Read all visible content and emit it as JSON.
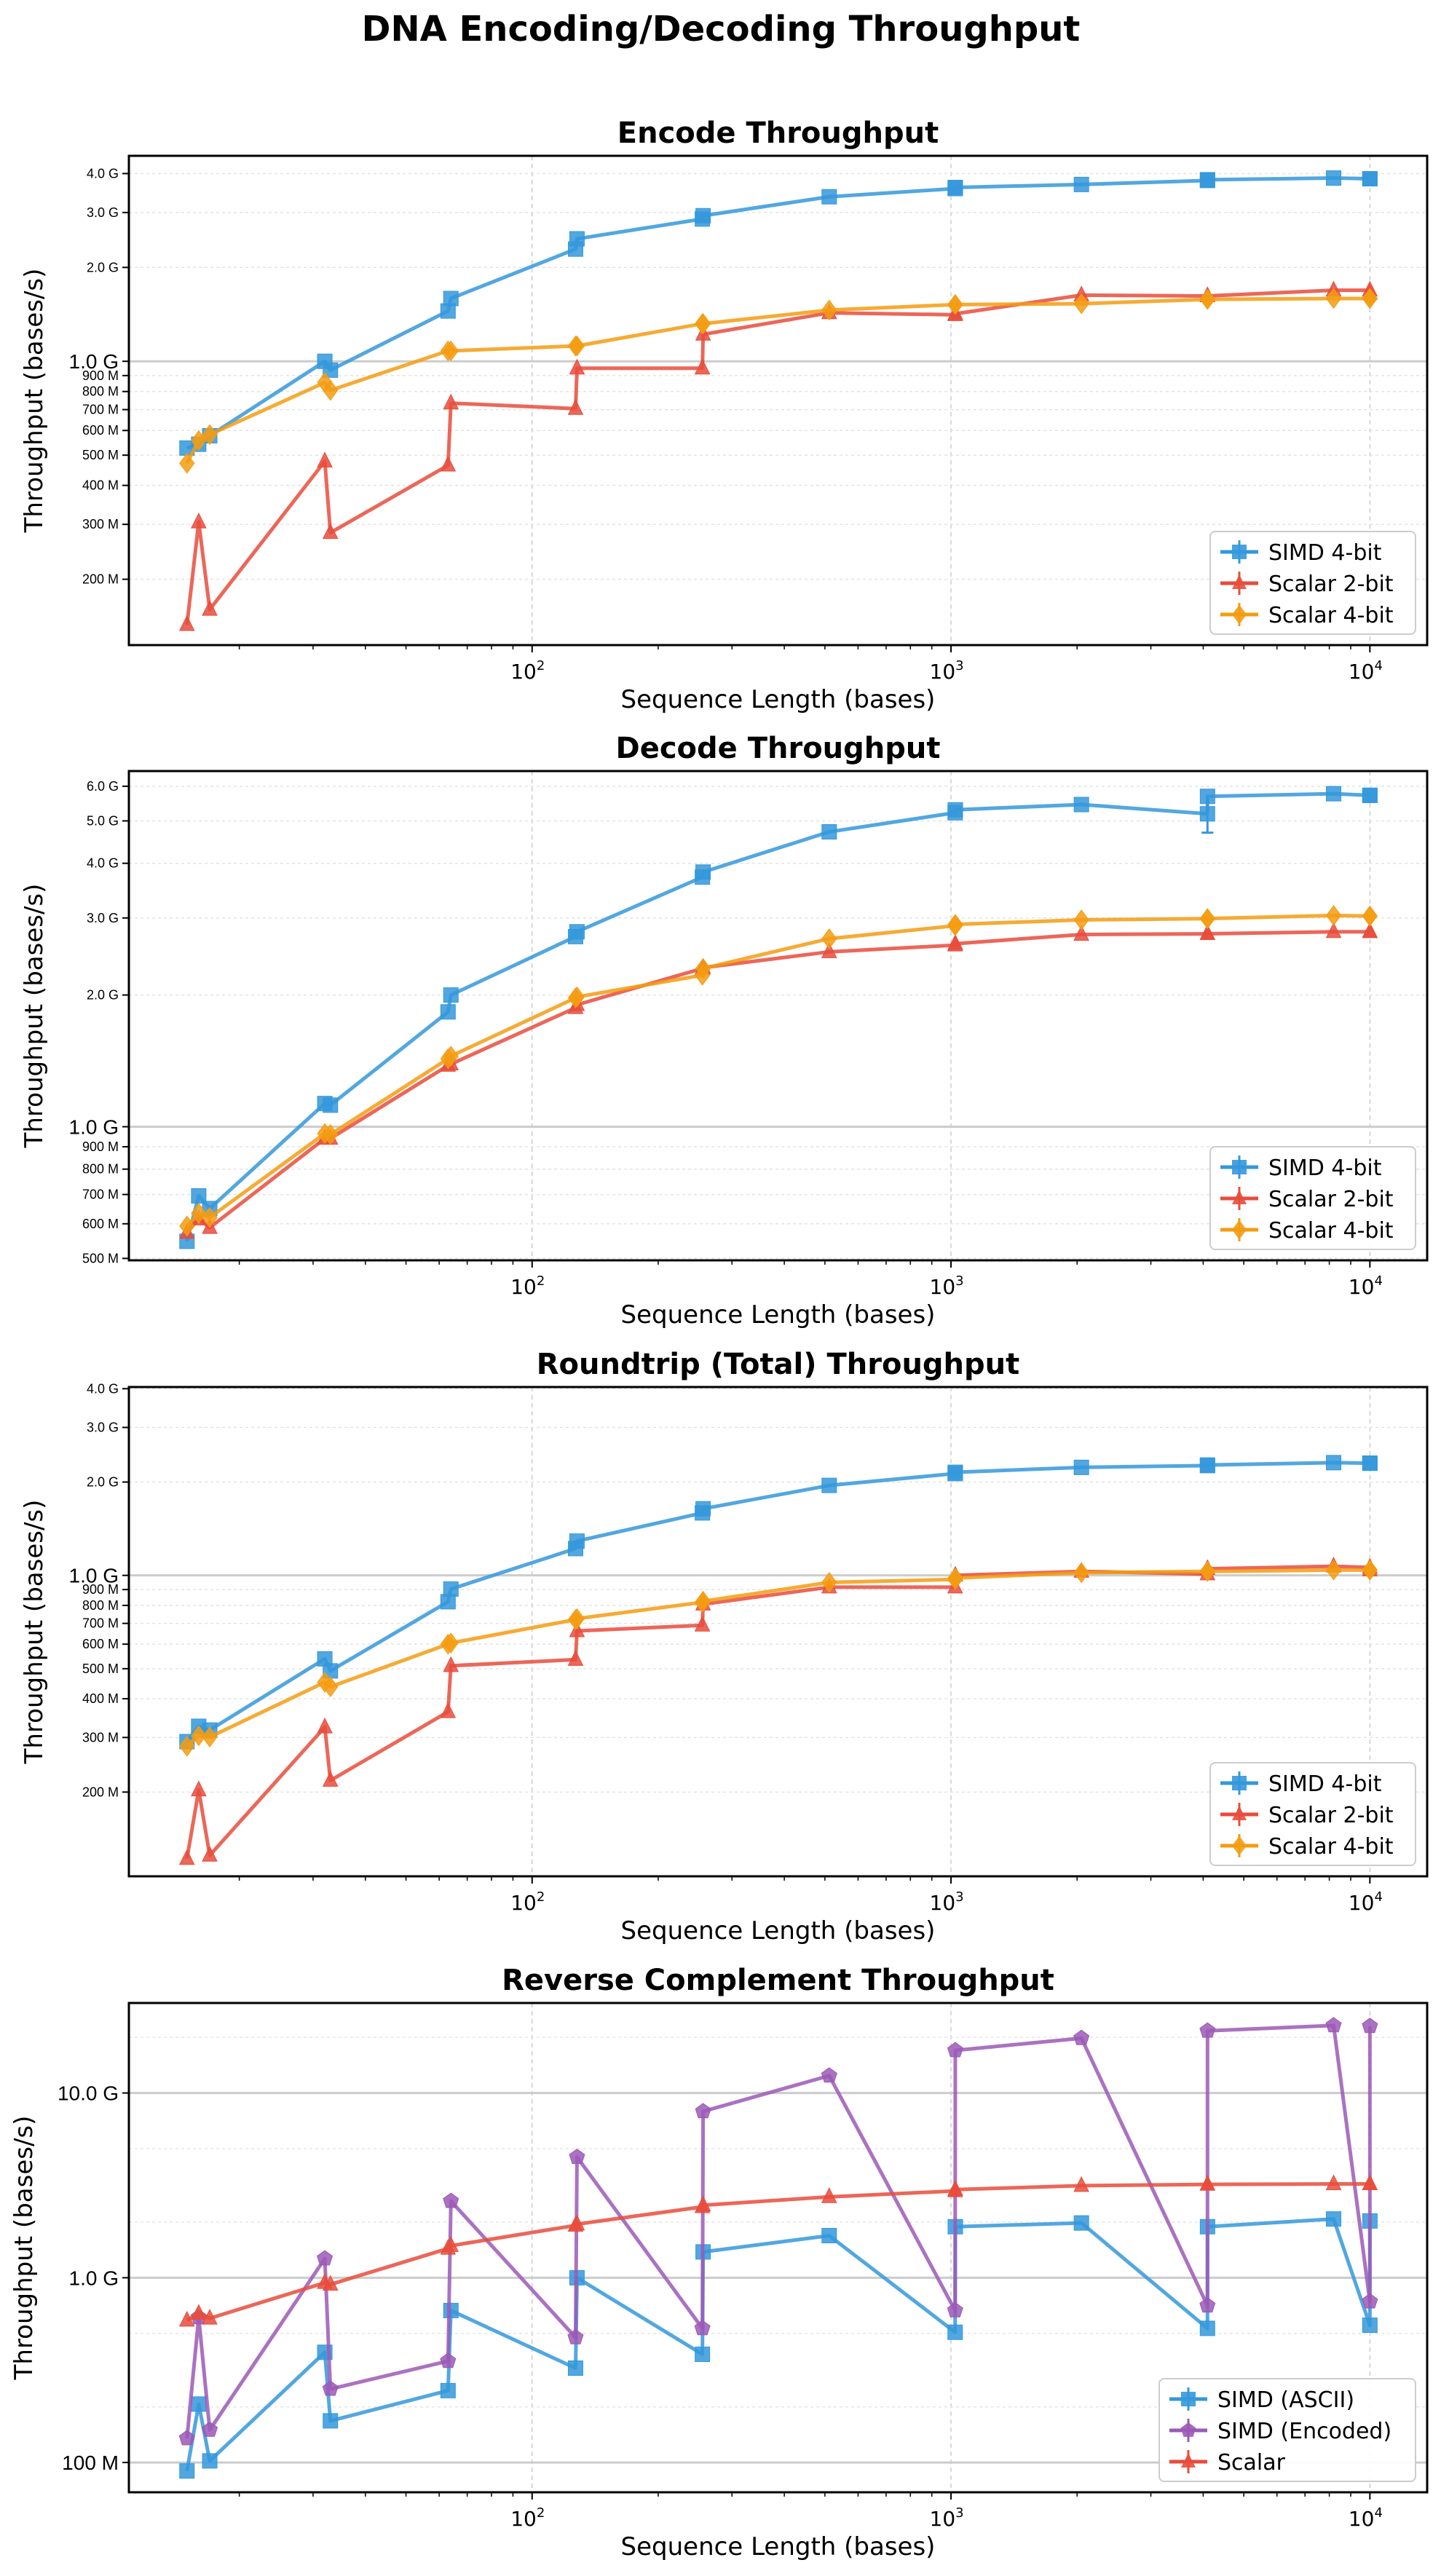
{
  "figure_title": "DNA Encoding/Decoding Throughput",
  "colors": {
    "blue": "#3498db",
    "red": "#e74c3c",
    "orange": "#f39c12",
    "purple": "#9b59b6"
  },
  "chart_data": [
    {
      "type": "line",
      "title": "Encode Throughput",
      "xlabel": "Sequence Length (bases)",
      "ylabel": "Throughput (bases/s)",
      "xscale": "log",
      "yscale": "log",
      "xlim": [
        10.9,
        13700
      ],
      "ylim": [
        123000000,
        4560000000
      ],
      "xticks": [
        {
          "value": 100,
          "base": "10",
          "exp": "2"
        },
        {
          "value": 1000,
          "base": "10",
          "exp": "3"
        },
        {
          "value": 10000,
          "base": "10",
          "exp": "4"
        }
      ],
      "yticks": [
        {
          "value": 200000000,
          "label": "200 M"
        },
        {
          "value": 300000000,
          "label": "300 M"
        },
        {
          "value": 400000000,
          "label": "400 M"
        },
        {
          "value": 500000000,
          "label": "500 M"
        },
        {
          "value": 600000000,
          "label": "600 M"
        },
        {
          "value": 700000000,
          "label": "700 M"
        },
        {
          "value": 800000000,
          "label": "800 M"
        },
        {
          "value": 900000000,
          "label": "900 M"
        },
        {
          "value": 1000000000,
          "label": "1.0 G"
        },
        {
          "value": 2000000000,
          "label": "2.0 G"
        },
        {
          "value": 3000000000,
          "label": "3.0 G"
        },
        {
          "value": 4000000000,
          "label": "4.0 G"
        }
      ],
      "grid": true,
      "legend": "lower-right",
      "x": [
        15,
        16,
        17,
        32,
        33,
        63,
        64,
        127,
        128,
        255,
        256,
        512,
        1023,
        1024,
        2048,
        4095,
        4096,
        8192,
        9999,
        10000
      ],
      "series": [
        {
          "name": "SIMD 4-bit",
          "color": "#3498db",
          "marker": "square",
          "values": [
            527000000.0,
            542000000.0,
            577000000.0,
            1000000000.0,
            937000000.0,
            1450000000.0,
            1590000000.0,
            2290000000.0,
            2470000000.0,
            2860000000.0,
            2930000000.0,
            3370000000.0,
            3580000000.0,
            3610000000.0,
            3690000000.0,
            3800000000.0,
            3820000000.0,
            3870000000.0,
            3850000000.0,
            3850000000.0
          ]
        },
        {
          "name": "Scalar 2-bit",
          "color": "#e74c3c",
          "marker": "triangle",
          "values": [
            143000000.0,
            305000000.0,
            160000000.0,
            478000000.0,
            282000000.0,
            464000000.0,
            734000000.0,
            705000000.0,
            950000000.0,
            950000000.0,
            1220000000.0,
            1430000000.0,
            1410000000.0,
            1420000000.0,
            1630000000.0,
            1620000000.0,
            1620000000.0,
            1690000000.0,
            1690000000.0,
            1650000000.0
          ]
        },
        {
          "name": "Scalar 4-bit",
          "color": "#f39c12",
          "marker": "diamond",
          "values": [
            471000000.0,
            557000000.0,
            582000000.0,
            855000000.0,
            807000000.0,
            1080000000.0,
            1080000000.0,
            1120000000.0,
            1120000000.0,
            1320000000.0,
            1320000000.0,
            1460000000.0,
            1520000000.0,
            1520000000.0,
            1530000000.0,
            1580000000.0,
            1580000000.0,
            1590000000.0,
            1590000000.0,
            1590000000.0
          ]
        }
      ]
    },
    {
      "type": "line",
      "title": "Decode Throughput",
      "xlabel": "Sequence Length (bases)",
      "ylabel": "Throughput (bases/s)",
      "xscale": "log",
      "yscale": "log",
      "xlim": [
        10.9,
        13700
      ],
      "ylim": [
        495000000,
        6500000000
      ],
      "xticks": [
        {
          "value": 100,
          "base": "10",
          "exp": "2"
        },
        {
          "value": 1000,
          "base": "10",
          "exp": "3"
        },
        {
          "value": 10000,
          "base": "10",
          "exp": "4"
        }
      ],
      "yticks": [
        {
          "value": 500000000,
          "label": "500 M"
        },
        {
          "value": 600000000,
          "label": "600 M"
        },
        {
          "value": 700000000,
          "label": "700 M"
        },
        {
          "value": 800000000,
          "label": "800 M"
        },
        {
          "value": 900000000,
          "label": "900 M"
        },
        {
          "value": 1000000000,
          "label": "1.0 G"
        },
        {
          "value": 2000000000,
          "label": "2.0 G"
        },
        {
          "value": 3000000000,
          "label": "3.0 G"
        },
        {
          "value": 4000000000,
          "label": "4.0 G"
        },
        {
          "value": 5000000000,
          "label": "5.0 G"
        },
        {
          "value": 6000000000,
          "label": "6.0 G"
        }
      ],
      "grid": true,
      "legend": "lower-right",
      "x": [
        15,
        16,
        17,
        32,
        33,
        63,
        64,
        127,
        128,
        255,
        256,
        512,
        1023,
        1024,
        2048,
        4095,
        4096,
        8192,
        9999,
        10000
      ],
      "series": [
        {
          "name": "SIMD 4-bit",
          "color": "#3498db",
          "marker": "square",
          "values": [
            547000000.0,
            695000000.0,
            650000000.0,
            1130000000.0,
            1120000000.0,
            1830000000.0,
            2000000000.0,
            2720000000.0,
            2790000000.0,
            3720000000.0,
            3820000000.0,
            4720000000.0,
            5220000000.0,
            5300000000.0,
            5450000000.0,
            5190000000.0,
            5690000000.0,
            5770000000.0,
            5720000000.0,
            5720000000.0
          ],
          "error_bars": [
            {
              "x": 4095,
              "low": 4700000000.0,
              "high": 5700000000.0
            }
          ]
        },
        {
          "name": "Scalar 2-bit",
          "color": "#e74c3c",
          "marker": "triangle",
          "values": [
            573000000.0,
            615000000.0,
            588000000.0,
            940000000.0,
            940000000.0,
            1380000000.0,
            1390000000.0,
            1870000000.0,
            1900000000.0,
            2300000000.0,
            2310000000.0,
            2510000000.0,
            2600000000.0,
            2620000000.0,
            2750000000.0,
            2760000000.0,
            2760000000.0,
            2790000000.0,
            2790000000.0,
            2790000000.0
          ]
        },
        {
          "name": "Scalar 4-bit",
          "color": "#f39c12",
          "marker": "diamond",
          "values": [
            593000000.0,
            634000000.0,
            620000000.0,
            965000000.0,
            960000000.0,
            1430000000.0,
            1450000000.0,
            1970000000.0,
            1980000000.0,
            2220000000.0,
            2300000000.0,
            2690000000.0,
            2880000000.0,
            2900000000.0,
            2970000000.0,
            2990000000.0,
            2990000000.0,
            3040000000.0,
            3030000000.0,
            3030000000.0
          ]
        }
      ]
    },
    {
      "type": "line",
      "title": "Roundtrip (Total) Throughput",
      "xlabel": "Sequence Length (bases)",
      "ylabel": "Throughput (bases/s)",
      "xscale": "log",
      "yscale": "log",
      "xlim": [
        10.9,
        13700
      ],
      "ylim": [
        107000000,
        4050000000
      ],
      "xticks": [
        {
          "value": 100,
          "base": "10",
          "exp": "2"
        },
        {
          "value": 1000,
          "base": "10",
          "exp": "3"
        },
        {
          "value": 10000,
          "base": "10",
          "exp": "4"
        }
      ],
      "yticks": [
        {
          "value": 200000000,
          "label": "200 M"
        },
        {
          "value": 300000000,
          "label": "300 M"
        },
        {
          "value": 400000000,
          "label": "400 M"
        },
        {
          "value": 500000000,
          "label": "500 M"
        },
        {
          "value": 600000000,
          "label": "600 M"
        },
        {
          "value": 700000000,
          "label": "700 M"
        },
        {
          "value": 800000000,
          "label": "800 M"
        },
        {
          "value": 900000000,
          "label": "900 M"
        },
        {
          "value": 1000000000,
          "label": "1.0 G"
        },
        {
          "value": 2000000000,
          "label": "2.0 G"
        },
        {
          "value": 3000000000,
          "label": "3.0 G"
        },
        {
          "value": 4000000000,
          "label": "4.0 G"
        }
      ],
      "grid": true,
      "legend": "lower-right",
      "x": [
        15,
        16,
        17,
        32,
        33,
        63,
        64,
        127,
        128,
        255,
        256,
        512,
        1023,
        1024,
        2048,
        4095,
        4096,
        8192,
        9999,
        10000
      ],
      "series": [
        {
          "name": "SIMD 4-bit",
          "color": "#3498db",
          "marker": "square",
          "values": [
            291000000.0,
            326000000.0,
            317000000.0,
            538000000.0,
            492000000.0,
            822000000.0,
            903000000.0,
            1220000000.0,
            1290000000.0,
            1590000000.0,
            1640000000.0,
            1950000000.0,
            2130000000.0,
            2150000000.0,
            2230000000.0,
            2260000000.0,
            2270000000.0,
            2310000000.0,
            2300000000.0,
            2300000000.0
          ]
        },
        {
          "name": "Scalar 2-bit",
          "color": "#e74c3c",
          "marker": "triangle",
          "values": [
            122000000.0,
            203000000.0,
            125000000.0,
            324000000.0,
            218000000.0,
            363000000.0,
            511000000.0,
            535000000.0,
            662000000.0,
            690000000.0,
            807000000.0,
            916000000.0,
            916000000.0,
            1000000000.0,
            1030000000.0,
            1010000000.0,
            1050000000.0,
            1070000000.0,
            1060000000.0,
            1040000000.0
          ]
        },
        {
          "name": "Scalar 4-bit",
          "color": "#f39c12",
          "marker": "diamond",
          "values": [
            281000000.0,
            304000000.0,
            301000000.0,
            452000000.0,
            437000000.0,
            600000000.0,
            605000000.0,
            720000000.0,
            725000000.0,
            819000000.0,
            825000000.0,
            949000000.0,
            970000000.0,
            980000000.0,
            1020000000.0,
            1030000000.0,
            1030000000.0,
            1040000000.0,
            1040000000.0,
            1040000000.0
          ]
        }
      ]
    },
    {
      "type": "line",
      "title": "Reverse Complement Throughput",
      "xlabel": "Sequence Length (bases)",
      "ylabel": "Throughput (bases/s)",
      "xscale": "log",
      "yscale": "log",
      "xlim": [
        10.9,
        13700
      ],
      "ylim": [
        69000000,
        30700000000
      ],
      "xticks": [
        {
          "value": 100,
          "base": "10",
          "exp": "2"
        },
        {
          "value": 1000,
          "base": "10",
          "exp": "3"
        },
        {
          "value": 10000,
          "base": "10",
          "exp": "4"
        }
      ],
      "yticks": [
        {
          "value": 100000000,
          "label": "100 M"
        },
        {
          "value": 1000000000,
          "label": "1.0 G"
        },
        {
          "value": 10000000000,
          "label": "10.0 G"
        }
      ],
      "grid": true,
      "legend": "lower-right",
      "x": [
        15,
        16,
        17,
        32,
        33,
        63,
        64,
        127,
        128,
        255,
        256,
        512,
        1023,
        1024,
        2048,
        4095,
        4096,
        8192,
        9999,
        10000
      ],
      "series": [
        {
          "name": "SIMD (ASCII)",
          "color": "#3498db",
          "marker": "square",
          "values": [
            90000000.0,
            207000000.0,
            102000000.0,
            395000000.0,
            168000000.0,
            245000000.0,
            665000000.0,
            324000000.0,
            1000000000.0,
            385000000.0,
            1380000000.0,
            1690000000.0,
            507000000.0,
            1890000000.0,
            1980000000.0,
            532000000.0,
            1890000000.0,
            2080000000.0,
            554000000.0,
            2030000000.0
          ]
        },
        {
          "name": "SIMD (Encoded)",
          "color": "#9b59b6",
          "marker": "pentagon",
          "values": [
            135000000.0,
            610000000.0,
            150000000.0,
            1270000000.0,
            250000000.0,
            354000000.0,
            2600000000.0,
            475000000.0,
            4500000000.0,
            532000000.0,
            7950000000.0,
            12400000000.0,
            665000000.0,
            17000000000.0,
            19800000000.0,
            706000000.0,
            21700000000.0,
            23200000000.0,
            743000000.0,
            23000000000.0
          ]
        },
        {
          "name": "Scalar",
          "color": "#e74c3c",
          "marker": "triangle",
          "values": [
            588000000.0,
            640000000.0,
            603000000.0,
            940000000.0,
            920000000.0,
            1440000000.0,
            1490000000.0,
            1920000000.0,
            1950000000.0,
            2420000000.0,
            2470000000.0,
            2740000000.0,
            2950000000.0,
            3000000000.0,
            3150000000.0,
            3200000000.0,
            3200000000.0,
            3220000000.0,
            3220000000.0,
            3220000000.0
          ]
        }
      ]
    }
  ]
}
